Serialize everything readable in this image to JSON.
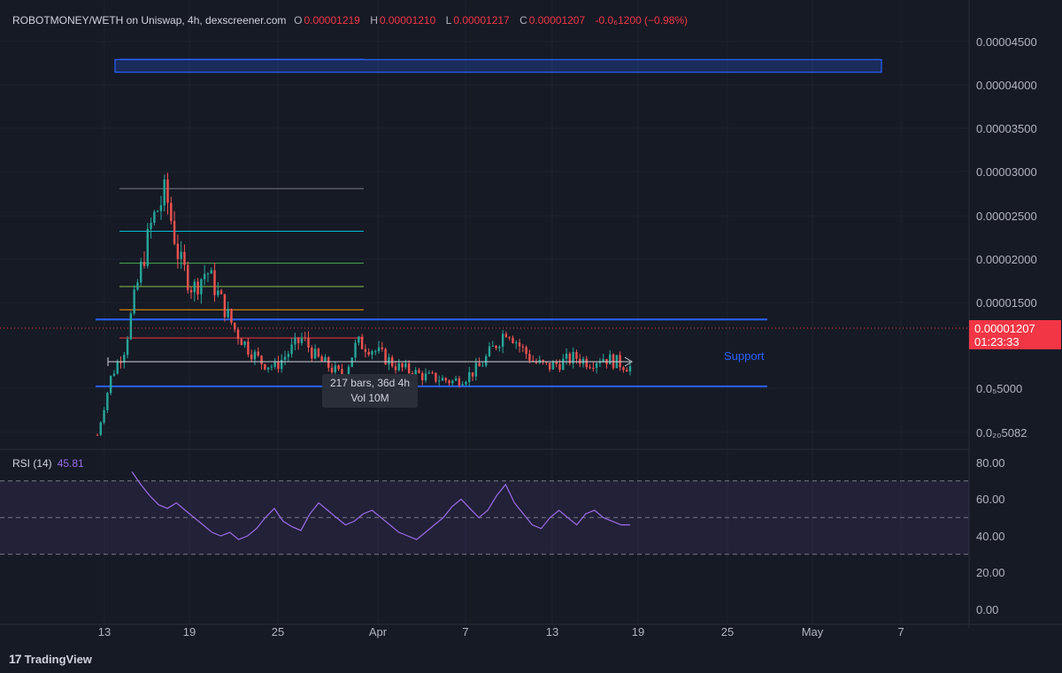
{
  "header": {
    "symbol": "ROBOTMONEY/WETH on Uniswap, 4h, dexscreener.com",
    "o_label": "O",
    "o_value": "0.00001219",
    "h_label": "H",
    "h_value": "0.00001210",
    "l_label": "L",
    "l_value": "0.00001217",
    "c_label": "C",
    "c_value": "0.00001207",
    "change": "-0.0₆1200 (−0.98%)"
  },
  "last_price": {
    "value": "0.00001207",
    "countdown": "01:23:33"
  },
  "tooltip": {
    "line1": "217 bars, 36d 4h",
    "line2": "Vol 10M"
  },
  "support_label": "Support",
  "rsi": {
    "label": "RSI (14)",
    "value": "45.81"
  },
  "brand": {
    "name": "TradingView"
  },
  "colors": {
    "up": "#26a69a",
    "down": "#ef5350",
    "accent": "#2962ff",
    "rsi": "#9c6ce8",
    "bg": "#161a25"
  },
  "chart_data": [
    {
      "type": "candlestick",
      "title": "ROBOTMONEY/WETH on Uniswap, 4h, dexscreener.com",
      "y_tick_labels": [
        "0.00004500",
        "0.00004000",
        "0.00003500",
        "0.00003000",
        "0.00002500",
        "0.00002000",
        "0.00001500",
        "0.0₅5000",
        "0.0₂₀5082"
      ],
      "x_tick_labels": [
        "13",
        "19",
        "25",
        "Apr",
        "7",
        "13",
        "19",
        "25",
        "May",
        "7"
      ],
      "support_zone": [
        1e-05,
        1.69e-05
      ],
      "fib_levels": [
        3.04e-05,
        2.6e-05,
        2.27e-05,
        2.03e-05,
        1.79e-05,
        1.5e-05
      ],
      "resistance_box": [
        4.24e-05,
        4.37e-05
      ],
      "ylim": [
        4.7e-06,
        4.62e-05
      ],
      "grid": true,
      "prices_approx": [
        5e-06,
        1.1e-05,
        1.4e-05,
        2.1e-05,
        2.7e-05,
        3e-05,
        2.3e-05,
        2e-05,
        2.2e-05,
        1.9e-05,
        1.6e-05,
        1.4e-05,
        1.25e-05,
        1.2e-05,
        1.35e-05,
        1.5e-05,
        1.3e-05,
        1.2e-05,
        1.1e-05,
        1.45e-05,
        1.4e-05,
        1.3e-05,
        1.2e-05,
        1.15e-05,
        1.1e-05,
        1.08e-05,
        1.05e-05,
        1.1e-05,
        1.2e-05,
        1.4e-05,
        1.6e-05,
        1.4e-05,
        1.25e-05,
        1.2e-05,
        1.25e-05,
        1.3e-05,
        1.25e-05,
        1.3e-05,
        1.25e-05,
        1.2e-05
      ]
    },
    {
      "type": "line",
      "title": "RSI (14)",
      "y_tick_labels": [
        "80.00",
        "60.00",
        "40.00",
        "20.00",
        "0.00"
      ],
      "ylim": [
        0,
        80
      ],
      "bands": [
        30,
        50,
        70
      ],
      "series": [
        {
          "name": "RSI (14)",
          "values": [
            75,
            68,
            62,
            57,
            55,
            58,
            54,
            50,
            46,
            42,
            40,
            42,
            38,
            40,
            44,
            50,
            55,
            48,
            45,
            43,
            52,
            58,
            54,
            50,
            46,
            48,
            52,
            54,
            50,
            46,
            42,
            40,
            38,
            42,
            46,
            50,
            56,
            60,
            55,
            50,
            54,
            62,
            68,
            58,
            52,
            46,
            44,
            50,
            54,
            50,
            46,
            52,
            54,
            50,
            48,
            46,
            46
          ]
        }
      ]
    }
  ]
}
